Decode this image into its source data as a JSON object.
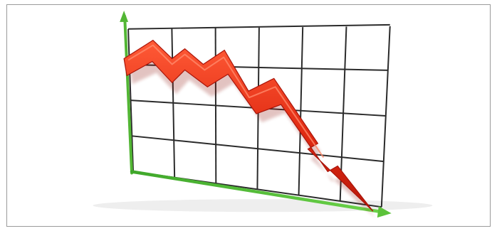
{
  "scene": {
    "subject": "3d-falling-trend-chart-illustration",
    "colors": {
      "frame_border": "#9a9a9a",
      "grid_line": "#2b2b2b",
      "axis": "#5cc23a",
      "axis_dark": "#2f8f1b",
      "trend_arrow": "#e02a12",
      "trend_arrow_shadow": "#9f140a",
      "background": "#ffffff"
    },
    "icons": {
      "y_axis_arrow": "up-arrow-icon",
      "x_axis_arrow": "right-arrow-icon",
      "trend": "down-trend-arrow-icon"
    },
    "grid": {
      "rows": 4,
      "cols": 6
    }
  }
}
